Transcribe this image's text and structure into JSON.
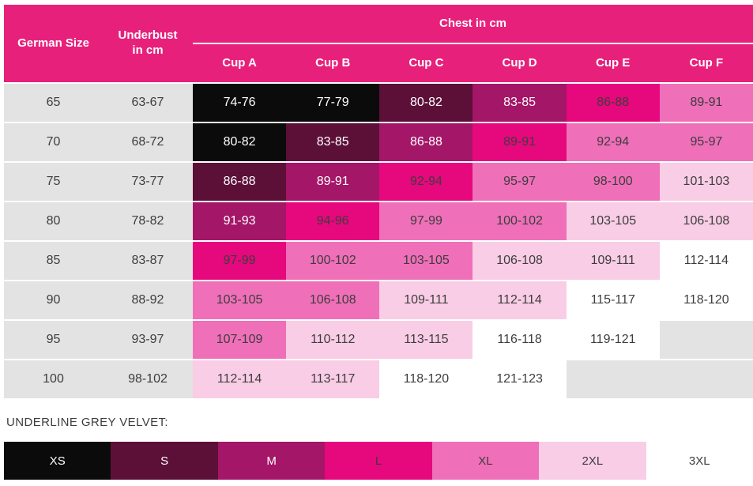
{
  "chart_data": {
    "type": "table",
    "header": {
      "col1": "German Size",
      "col2": "Underbust\nin cm",
      "group": "Chest in cm",
      "cups": [
        "Cup A",
        "Cup B",
        "Cup C",
        "Cup D",
        "Cup E",
        "Cup F"
      ]
    },
    "rows": [
      {
        "size": "65",
        "underbust": "63-67",
        "cells": [
          [
            "74-76",
            "xs"
          ],
          [
            "77-79",
            "xs"
          ],
          [
            "80-82",
            "s"
          ],
          [
            "83-85",
            "m"
          ],
          [
            "86-88",
            "l"
          ],
          [
            "89-91",
            "xl"
          ]
        ]
      },
      {
        "size": "70",
        "underbust": "68-72",
        "cells": [
          [
            "80-82",
            "xs"
          ],
          [
            "83-85",
            "s"
          ],
          [
            "86-88",
            "m"
          ],
          [
            "89-91",
            "l"
          ],
          [
            "92-94",
            "xl"
          ],
          [
            "95-97",
            "xl"
          ]
        ]
      },
      {
        "size": "75",
        "underbust": "73-77",
        "cells": [
          [
            "86-88",
            "s"
          ],
          [
            "89-91",
            "m"
          ],
          [
            "92-94",
            "l"
          ],
          [
            "95-97",
            "xl"
          ],
          [
            "98-100",
            "xl"
          ],
          [
            "101-103",
            "2xl"
          ]
        ]
      },
      {
        "size": "80",
        "underbust": "78-82",
        "cells": [
          [
            "91-93",
            "m"
          ],
          [
            "94-96",
            "l"
          ],
          [
            "97-99",
            "xl"
          ],
          [
            "100-102",
            "xl"
          ],
          [
            "103-105",
            "2xl"
          ],
          [
            "106-108",
            "2xl"
          ]
        ]
      },
      {
        "size": "85",
        "underbust": "83-87",
        "cells": [
          [
            "97-99",
            "l"
          ],
          [
            "100-102",
            "xl"
          ],
          [
            "103-105",
            "xl"
          ],
          [
            "106-108",
            "2xl"
          ],
          [
            "109-111",
            "2xl"
          ],
          [
            "112-114",
            "3xl"
          ]
        ]
      },
      {
        "size": "90",
        "underbust": "88-92",
        "cells": [
          [
            "103-105",
            "xl"
          ],
          [
            "106-108",
            "xl"
          ],
          [
            "109-111",
            "2xl"
          ],
          [
            "112-114",
            "2xl"
          ],
          [
            "115-117",
            "3xl"
          ],
          [
            "118-120",
            "3xl"
          ]
        ]
      },
      {
        "size": "95",
        "underbust": "93-97",
        "cells": [
          [
            "107-109",
            "xl"
          ],
          [
            "110-112",
            "2xl"
          ],
          [
            "113-115",
            "2xl"
          ],
          [
            "116-118",
            "3xl"
          ],
          [
            "119-121",
            "3xl"
          ],
          [
            "",
            "empty"
          ]
        ]
      },
      {
        "size": "100",
        "underbust": "98-102",
        "cells": [
          [
            "112-114",
            "2xl"
          ],
          [
            "113-117",
            "2xl"
          ],
          [
            "118-120",
            "3xl"
          ],
          [
            "121-123",
            "3xl"
          ],
          [
            "",
            "empty"
          ],
          [
            "",
            "empty"
          ]
        ]
      }
    ],
    "legend_label": "UNDERLINE GREY VELVET:",
    "legend": [
      [
        "XS",
        "xs"
      ],
      [
        "S",
        "s"
      ],
      [
        "M",
        "m"
      ],
      [
        "L",
        "l"
      ],
      [
        "XL",
        "xl"
      ],
      [
        "2XL",
        "2xl"
      ],
      [
        "3XL",
        "3xl"
      ]
    ],
    "colors": {
      "header_pink": "#e7217b",
      "xs": "#0b0b0b",
      "s": "#5c1038",
      "m": "#a41667",
      "l": "#e6087d",
      "xl": "#ef6fb9",
      "2xl": "#f9cde6",
      "3xl": "#ffffff",
      "empty_grey": "#e3e3e3",
      "text_dark": "#3d3d3d",
      "text_light": "#ffffff"
    }
  }
}
